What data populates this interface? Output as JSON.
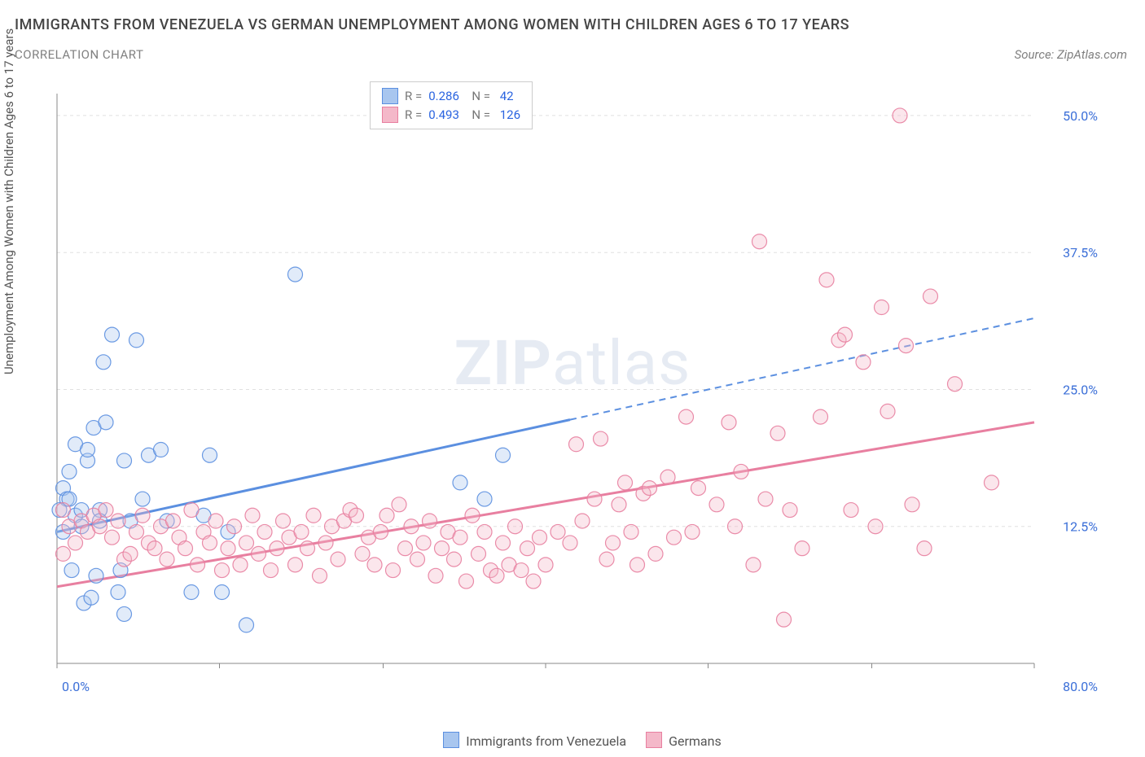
{
  "title": "IMMIGRANTS FROM VENEZUELA VS GERMAN UNEMPLOYMENT AMONG WOMEN WITH CHILDREN AGES 6 TO 17 YEARS",
  "subtitle": "CORRELATION CHART",
  "source": "Source: ZipAtlas.com",
  "ylabel": "Unemployment Among Women with Children Ages 6 to 17 years",
  "watermark_a": "ZIP",
  "watermark_b": "atlas",
  "chart": {
    "type": "scatter",
    "xlim": [
      0,
      80
    ],
    "ylim": [
      0,
      52
    ],
    "xticks": [
      0.0,
      80.0
    ],
    "xtick_labels": [
      "0.0%",
      "80.0%"
    ],
    "yticks": [
      12.5,
      25.0,
      37.5,
      50.0
    ],
    "ytick_labels": [
      "12.5%",
      "25.0%",
      "37.5%",
      "50.0%"
    ],
    "grid_color": "#e0e0e0",
    "axis_color": "#888888",
    "background_color": "#ffffff",
    "marker_radius": 9,
    "marker_fill_opacity": 0.35,
    "marker_stroke_opacity": 0.9,
    "marker_stroke_width": 1.2,
    "series": [
      {
        "name": "Immigrants from Venezuela",
        "color": "#5b8fe0",
        "fill": "#a8c6ef",
        "R": "0.286",
        "N": "42",
        "trend": {
          "x1": 0,
          "y1": 12.0,
          "x2": 80,
          "y2": 31.5,
          "solid_until_x": 42
        },
        "points": [
          [
            0.5,
            16.0
          ],
          [
            0.8,
            15.0
          ],
          [
            1.0,
            17.5
          ],
          [
            1.2,
            8.5
          ],
          [
            1.5,
            13.5
          ],
          [
            1.5,
            20.0
          ],
          [
            2.0,
            14.0
          ],
          [
            2.0,
            12.5
          ],
          [
            2.2,
            5.5
          ],
          [
            2.5,
            18.5
          ],
          [
            2.5,
            19.5
          ],
          [
            2.8,
            6.0
          ],
          [
            3.0,
            21.5
          ],
          [
            3.2,
            8.0
          ],
          [
            3.5,
            14.0
          ],
          [
            3.5,
            13.0
          ],
          [
            3.8,
            27.5
          ],
          [
            4.0,
            22.0
          ],
          [
            4.5,
            30.0
          ],
          [
            5.0,
            6.5
          ],
          [
            5.2,
            8.5
          ],
          [
            5.5,
            18.5
          ],
          [
            5.5,
            4.5
          ],
          [
            6.0,
            13.0
          ],
          [
            6.5,
            29.5
          ],
          [
            7.0,
            15.0
          ],
          [
            7.5,
            19.0
          ],
          [
            8.5,
            19.5
          ],
          [
            9.0,
            13.0
          ],
          [
            11.0,
            6.5
          ],
          [
            12.0,
            13.5
          ],
          [
            12.5,
            19.0
          ],
          [
            13.5,
            6.5
          ],
          [
            14.0,
            12.0
          ],
          [
            15.5,
            3.5
          ],
          [
            19.5,
            35.5
          ],
          [
            33.0,
            16.5
          ],
          [
            35.0,
            15.0
          ],
          [
            36.5,
            19.0
          ],
          [
            0.5,
            12.0
          ],
          [
            1.0,
            15.0
          ],
          [
            0.2,
            14.0
          ]
        ]
      },
      {
        "name": "Germans",
        "color": "#e87fa0",
        "fill": "#f4b8c9",
        "R": "0.493",
        "N": "126",
        "trend": {
          "x1": 0,
          "y1": 7.0,
          "x2": 80,
          "y2": 22.0,
          "solid_until_x": 80
        },
        "points": [
          [
            0.5,
            14.0
          ],
          [
            1.0,
            12.5
          ],
          [
            1.5,
            11.0
          ],
          [
            2.0,
            13.0
          ],
          [
            2.5,
            12.0
          ],
          [
            3.0,
            13.5
          ],
          [
            3.5,
            12.5
          ],
          [
            4.0,
            14.0
          ],
          [
            4.5,
            11.5
          ],
          [
            5.0,
            13.0
          ],
          [
            5.5,
            9.5
          ],
          [
            6.0,
            10.0
          ],
          [
            6.5,
            12.0
          ],
          [
            7.0,
            13.5
          ],
          [
            7.5,
            11.0
          ],
          [
            8.0,
            10.5
          ],
          [
            8.5,
            12.5
          ],
          [
            9.0,
            9.5
          ],
          [
            9.5,
            13.0
          ],
          [
            10.0,
            11.5
          ],
          [
            10.5,
            10.5
          ],
          [
            11.0,
            14.0
          ],
          [
            11.5,
            9.0
          ],
          [
            12.0,
            12.0
          ],
          [
            12.5,
            11.0
          ],
          [
            13.0,
            13.0
          ],
          [
            13.5,
            8.5
          ],
          [
            14.0,
            10.5
          ],
          [
            14.5,
            12.5
          ],
          [
            15.0,
            9.0
          ],
          [
            15.5,
            11.0
          ],
          [
            16.0,
            13.5
          ],
          [
            16.5,
            10.0
          ],
          [
            17.0,
            12.0
          ],
          [
            17.5,
            8.5
          ],
          [
            18.0,
            10.5
          ],
          [
            18.5,
            13.0
          ],
          [
            19.0,
            11.5
          ],
          [
            19.5,
            9.0
          ],
          [
            20.0,
            12.0
          ],
          [
            20.5,
            10.5
          ],
          [
            21.0,
            13.5
          ],
          [
            21.5,
            8.0
          ],
          [
            22.0,
            11.0
          ],
          [
            22.5,
            12.5
          ],
          [
            23.0,
            9.5
          ],
          [
            23.5,
            13.0
          ],
          [
            24.0,
            14.0
          ],
          [
            24.5,
            13.5
          ],
          [
            25.0,
            10.0
          ],
          [
            25.5,
            11.5
          ],
          [
            26.0,
            9.0
          ],
          [
            26.5,
            12.0
          ],
          [
            27.0,
            13.5
          ],
          [
            27.5,
            8.5
          ],
          [
            28.0,
            14.5
          ],
          [
            28.5,
            10.5
          ],
          [
            29.0,
            12.5
          ],
          [
            29.5,
            9.5
          ],
          [
            30.0,
            11.0
          ],
          [
            30.5,
            13.0
          ],
          [
            31.0,
            8.0
          ],
          [
            31.5,
            10.5
          ],
          [
            32.0,
            12.0
          ],
          [
            32.5,
            9.5
          ],
          [
            33.0,
            11.5
          ],
          [
            33.5,
            7.5
          ],
          [
            34.0,
            13.5
          ],
          [
            34.5,
            10.0
          ],
          [
            35.0,
            12.0
          ],
          [
            35.5,
            8.5
          ],
          [
            36.0,
            8.0
          ],
          [
            36.5,
            11.0
          ],
          [
            37.0,
            9.0
          ],
          [
            37.5,
            12.5
          ],
          [
            38.0,
            8.5
          ],
          [
            38.5,
            10.5
          ],
          [
            39.0,
            7.5
          ],
          [
            39.5,
            11.5
          ],
          [
            40.0,
            9.0
          ],
          [
            41.0,
            12.0
          ],
          [
            42.0,
            11.0
          ],
          [
            42.5,
            20.0
          ],
          [
            43.0,
            13.0
          ],
          [
            44.0,
            15.0
          ],
          [
            44.5,
            20.5
          ],
          [
            45.0,
            9.5
          ],
          [
            45.5,
            11.0
          ],
          [
            46.0,
            14.5
          ],
          [
            46.5,
            16.5
          ],
          [
            47.0,
            12.0
          ],
          [
            47.5,
            9.0
          ],
          [
            48.0,
            15.5
          ],
          [
            48.5,
            16.0
          ],
          [
            49.0,
            10.0
          ],
          [
            50.0,
            17.0
          ],
          [
            50.5,
            11.5
          ],
          [
            51.5,
            22.5
          ],
          [
            52.0,
            12.0
          ],
          [
            52.5,
            16.0
          ],
          [
            54.0,
            14.5
          ],
          [
            55.0,
            22.0
          ],
          [
            55.5,
            12.5
          ],
          [
            56.0,
            17.5
          ],
          [
            57.0,
            9.0
          ],
          [
            57.5,
            38.5
          ],
          [
            58.0,
            15.0
          ],
          [
            59.0,
            21.0
          ],
          [
            59.5,
            4.0
          ],
          [
            60.0,
            14.0
          ],
          [
            61.0,
            10.5
          ],
          [
            62.5,
            22.5
          ],
          [
            63.0,
            35.0
          ],
          [
            64.0,
            29.5
          ],
          [
            64.5,
            30.0
          ],
          [
            65.0,
            14.0
          ],
          [
            66.0,
            27.5
          ],
          [
            67.0,
            12.5
          ],
          [
            67.5,
            32.5
          ],
          [
            68.0,
            23.0
          ],
          [
            69.0,
            50.0
          ],
          [
            69.5,
            29.0
          ],
          [
            70.0,
            14.5
          ],
          [
            71.0,
            10.5
          ],
          [
            71.5,
            33.5
          ],
          [
            73.5,
            25.5
          ],
          [
            76.5,
            16.5
          ],
          [
            0.5,
            10.0
          ]
        ]
      }
    ]
  },
  "legend_bottom": [
    {
      "label": "Immigrants from Venezuela",
      "fill": "#a8c6ef",
      "border": "#5b8fe0"
    },
    {
      "label": "Germans",
      "fill": "#f4b8c9",
      "border": "#e87fa0"
    }
  ]
}
